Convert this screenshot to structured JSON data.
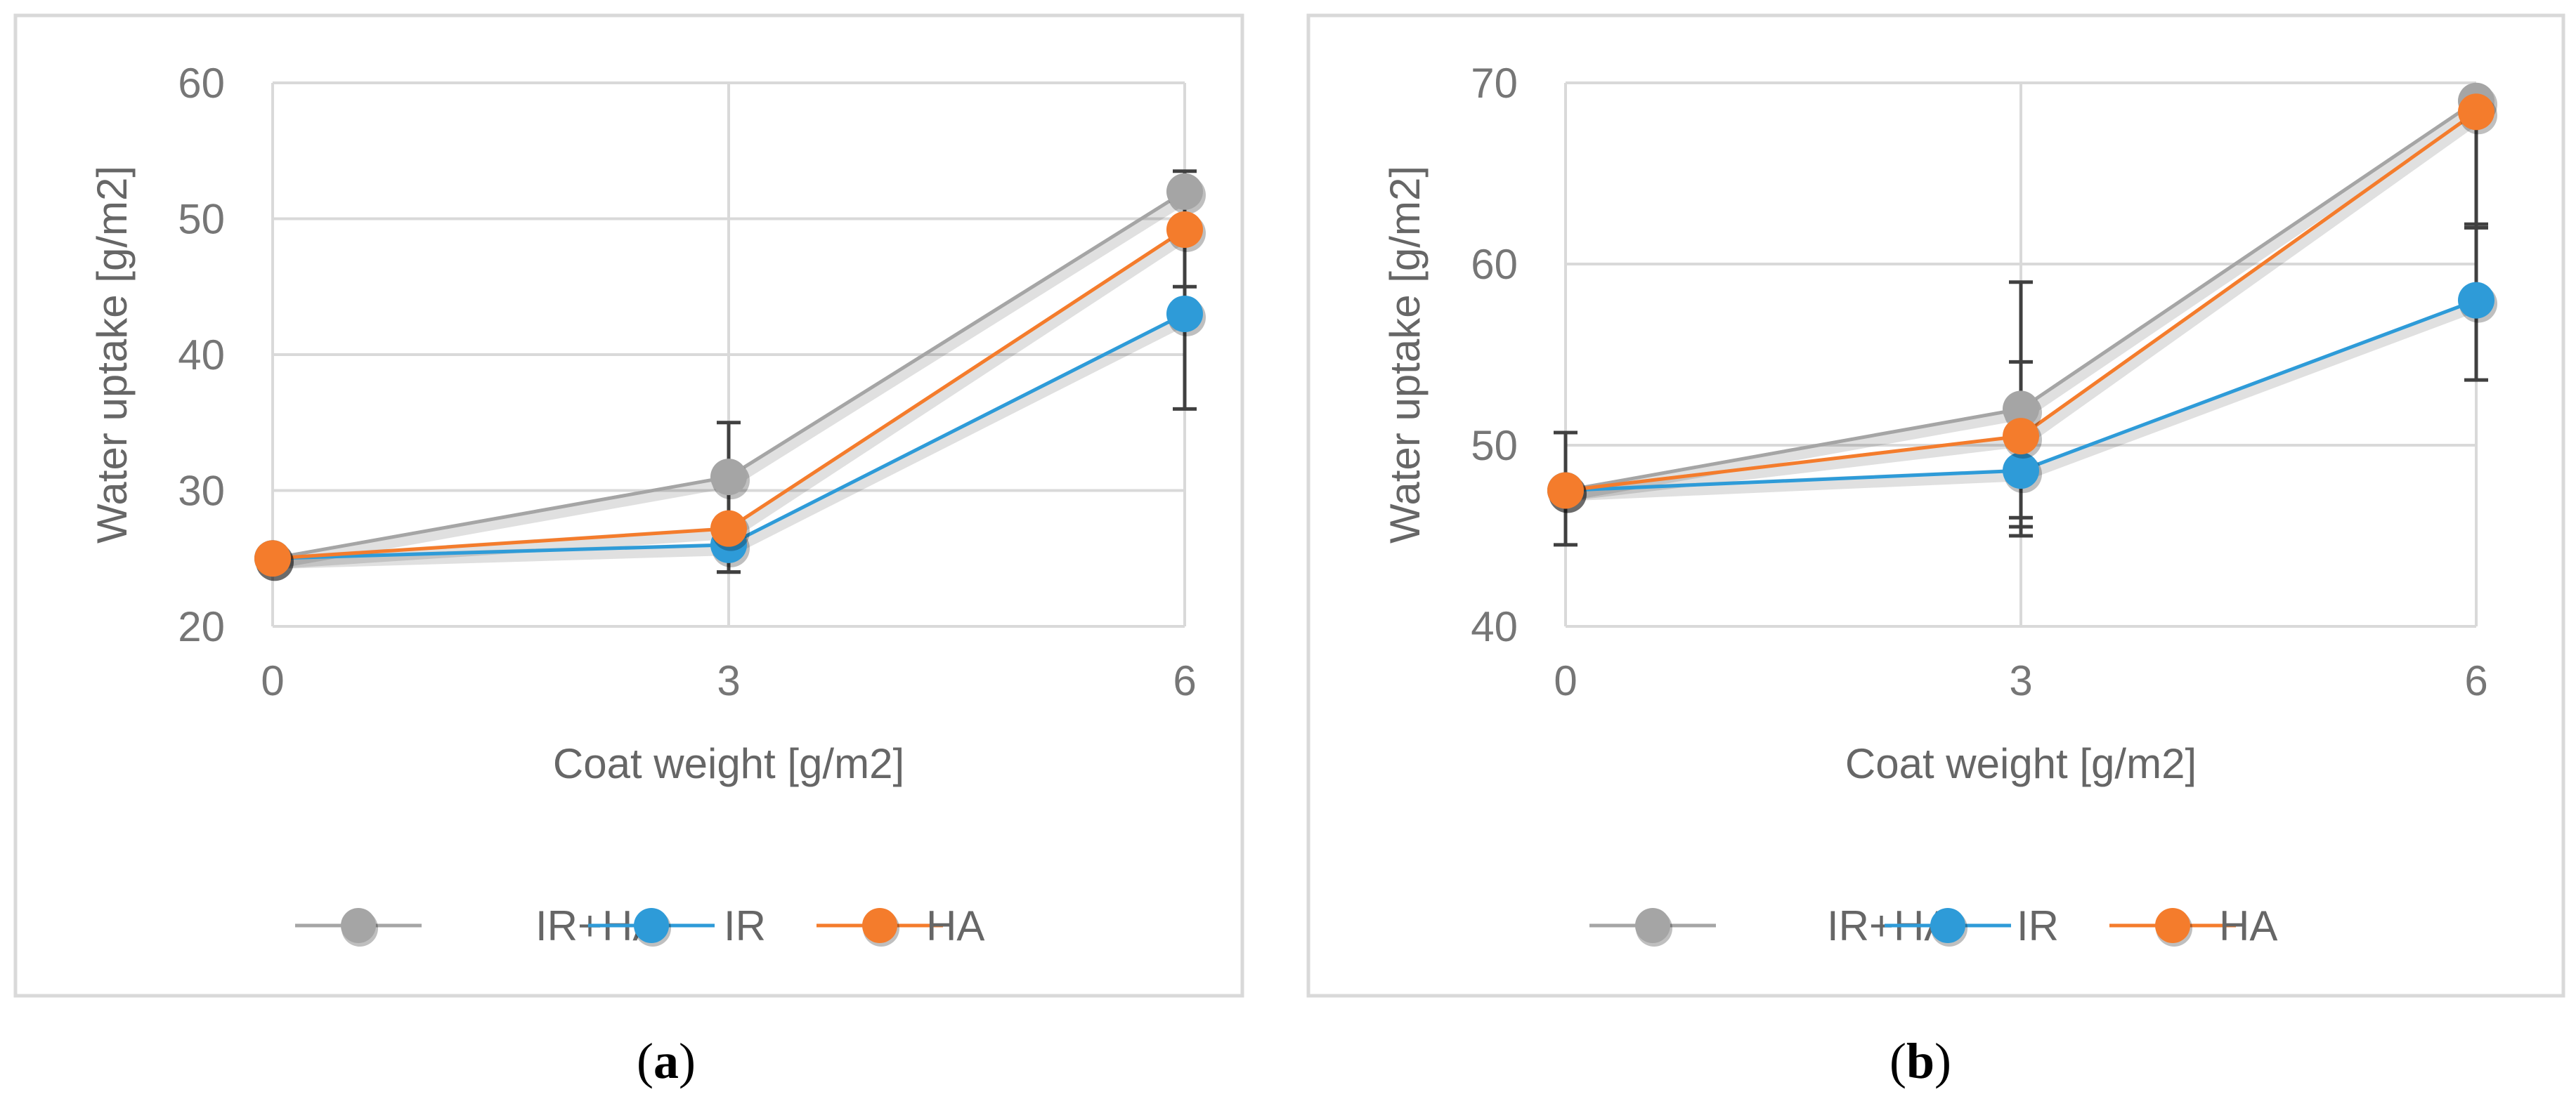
{
  "colors": {
    "IR+HA": "#a5a5a5",
    "IR": "#2e9bd8",
    "HA": "#f47c2c",
    "grid": "#d9d9d9",
    "frame": "#d9d9d9",
    "errorbar": "#404040"
  },
  "chart_data": [
    {
      "type": "line",
      "panel": "a",
      "caption_open": "(",
      "caption_letter": "a",
      "caption_close": ")",
      "categories": [
        "0",
        "3",
        "6"
      ],
      "x": [
        0,
        3,
        6
      ],
      "xlabel": "Coat weight [g/m2]",
      "ylabel": "Water uptake [g/m2]",
      "ylim": [
        20,
        60
      ],
      "yticks": [
        20,
        30,
        40,
        50,
        60
      ],
      "ytick_labels": [
        "20",
        "30",
        "40",
        "50",
        "60"
      ],
      "grid": true,
      "legend_position": "bottom",
      "series": [
        {
          "name": "IR+HA",
          "values": [
            25,
            31,
            52
          ],
          "err_low": [
            null,
            24,
            45
          ],
          "err_high": [
            null,
            35,
            53.5
          ]
        },
        {
          "name": "IR",
          "values": [
            25,
            26,
            43
          ],
          "err_low": [
            null,
            24,
            null
          ],
          "err_high": [
            null,
            null,
            null
          ]
        },
        {
          "name": "HA",
          "values": [
            25,
            27.2,
            49.2
          ],
          "err_low": [
            null,
            null,
            36
          ],
          "err_high": [
            null,
            null,
            null
          ]
        }
      ]
    },
    {
      "type": "line",
      "panel": "b",
      "caption_open": "(",
      "caption_letter": "b",
      "caption_close": ")",
      "categories": [
        "0",
        "3",
        "6"
      ],
      "x": [
        0,
        3,
        6
      ],
      "xlabel": "Coat weight [g/m2]",
      "ylabel": "Water uptake [g/m2]",
      "ylim": [
        40,
        70
      ],
      "yticks": [
        40,
        50,
        60,
        70
      ],
      "ytick_labels": [
        "40",
        "50",
        "60",
        "70"
      ],
      "grid": true,
      "legend_position": "bottom",
      "series": [
        {
          "name": "IR+HA",
          "values": [
            47.5,
            52,
            69
          ],
          "err_low": [
            44.5,
            45,
            62
          ],
          "err_high": [
            50.7,
            59,
            null
          ]
        },
        {
          "name": "IR",
          "values": [
            47.5,
            48.6,
            58
          ],
          "err_low": [
            null,
            45.5,
            53.6
          ],
          "err_high": [
            null,
            null,
            62.2
          ]
        },
        {
          "name": "HA",
          "values": [
            47.5,
            50.5,
            68.4
          ],
          "err_low": [
            null,
            46,
            null
          ],
          "err_high": [
            null,
            54.6,
            null
          ]
        }
      ]
    }
  ]
}
